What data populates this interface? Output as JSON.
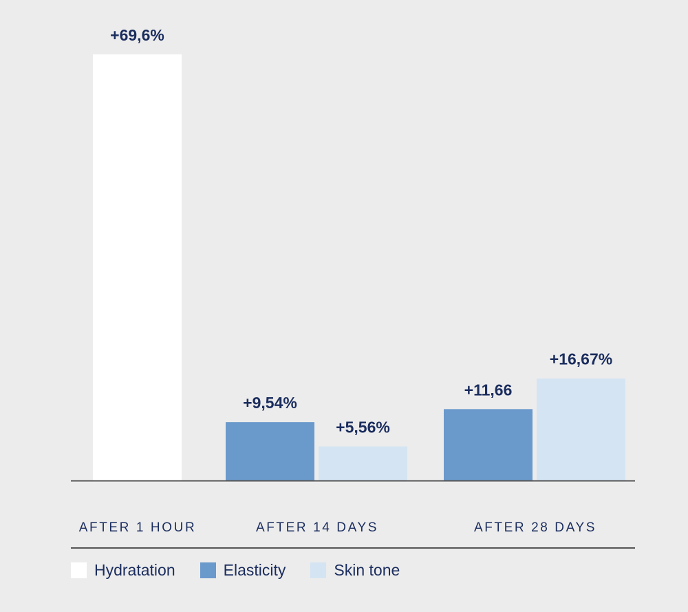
{
  "chart_data": {
    "type": "bar",
    "categories": [
      "AFTER 1 HOUR",
      "AFTER 14 DAYS",
      "AFTER 28 DAYS"
    ],
    "series": [
      {
        "name": "Hydratation",
        "color": "#ffffff",
        "values": [
          69.6,
          null,
          null
        ],
        "labels": [
          "+69,6%",
          null,
          null
        ]
      },
      {
        "name": "Elasticity",
        "color": "#6a99cc",
        "values": [
          null,
          9.54,
          11.66
        ],
        "labels": [
          null,
          "+9,54%",
          "+11,66"
        ]
      },
      {
        "name": "Skin tone",
        "color": "#d4e4f3",
        "values": [
          null,
          5.56,
          16.67
        ],
        "labels": [
          null,
          "+5,56%",
          "+16,67%"
        ]
      }
    ],
    "title": "",
    "xlabel": "",
    "ylabel": "",
    "ylim": [
      0,
      69.6
    ],
    "grid": false,
    "legend": "bottom-left",
    "label_color": "#1b2d5e",
    "axis_color": "#555555",
    "background": "#ececec"
  }
}
